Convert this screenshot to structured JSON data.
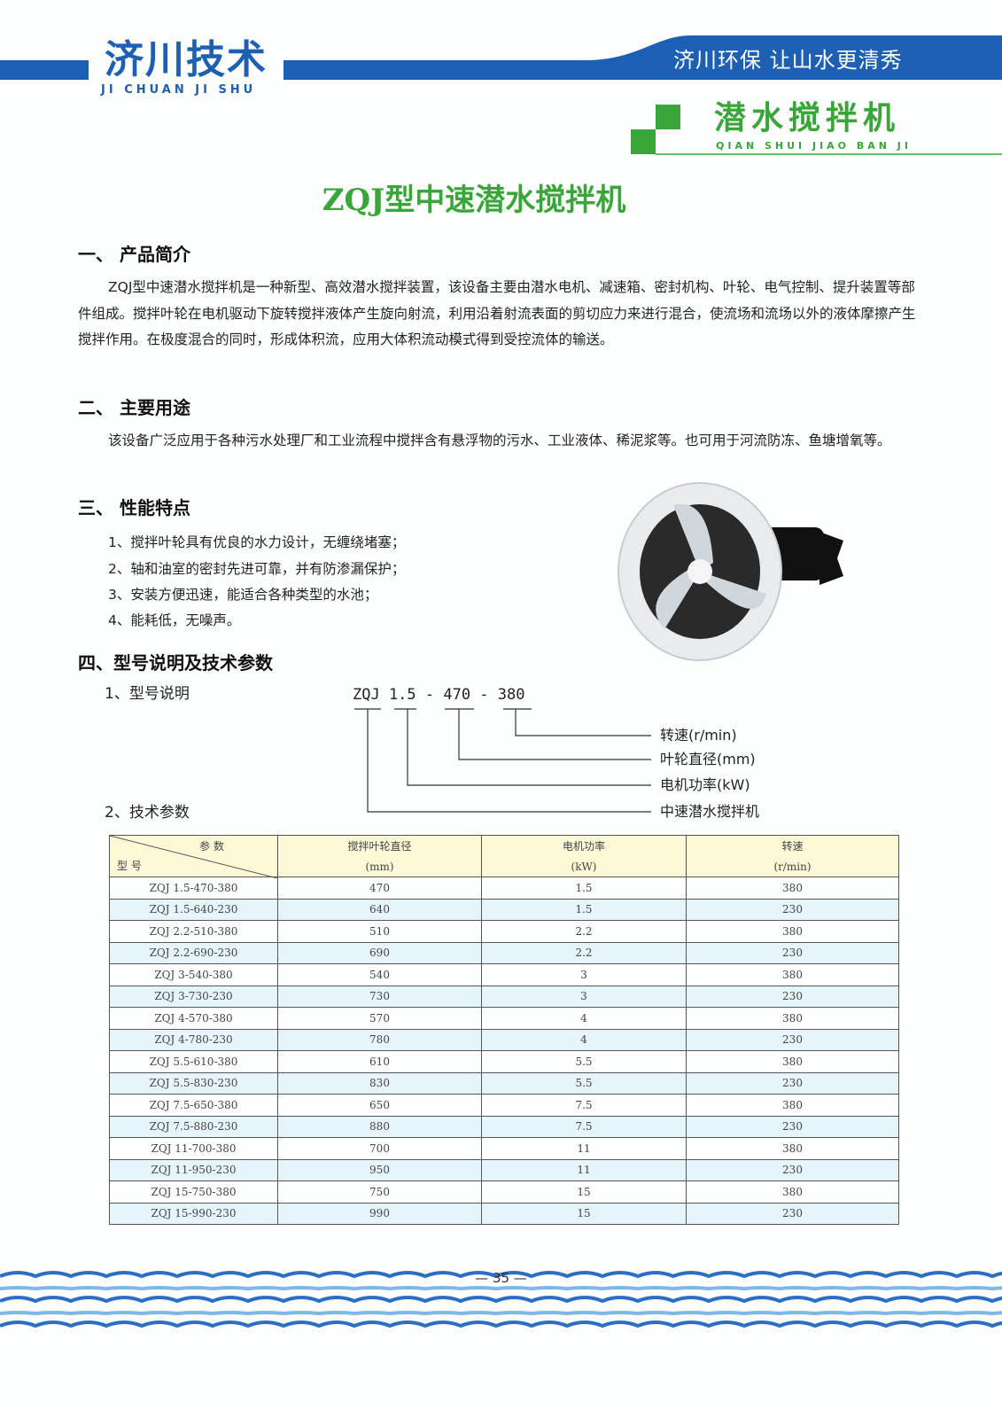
{
  "header": {
    "logo": "济川技术",
    "logo_sub": "JI CHUAN JI SHU",
    "slogan": "济川环保  让山水更清秀",
    "product": "潜水搅拌机",
    "product_sub": "QIAN SHUI JIAO BAN JI",
    "brand_blue": "#1d5fb3",
    "brand_green": "#3aa63a"
  },
  "title": "ZQJ型中速潜水搅拌机",
  "sections": {
    "s1": {
      "heading": "一、 产品简介",
      "text": "ZQJ型中速潜水搅拌机是一种新型、高效潜水搅拌装置，该设备主要由潜水电机、减速箱、密封机构、叶轮、电气控制、提升装置等部件组成。搅拌叶轮在电机驱动下旋转搅拌液体产生旋向射流，利用沿着射流表面的剪切应力来进行混合，使流场和流场以外的液体摩擦产生搅拌作用。在极度混合的同时，形成体积流，应用大体积流动模式得到受控流体的输送。"
    },
    "s2": {
      "heading": "二、 主要用途",
      "text": "该设备广泛应用于各种污水处理厂和工业流程中搅拌含有悬浮物的污水、工业液体、稀泥浆等。也可用于河流防冻、鱼塘增氧等。"
    },
    "s3": {
      "heading": "三、 性能特点",
      "items": [
        "1、搅拌叶轮具有优良的水力设计，无缠绕堵塞；",
        "2、轴和油室的密封先进可靠，并有防渗漏保护；",
        "3、安装方便迅速，能适合各种类型的水池；",
        "4、能耗低，无噪声。"
      ]
    },
    "s4": {
      "heading": "四、型号说明及技术参数",
      "sub1": "1、型号说明",
      "sub2": "2、技术参数"
    }
  },
  "model_diagram": {
    "code": "ZQJ 1.5 - 470 - 380",
    "labels": [
      "转速(r/min)",
      "叶轮直径(mm)",
      "电机功率(kW)",
      "中速潜水搅拌机"
    ]
  },
  "table": {
    "corner_top": "参 数",
    "corner_bottom": "型 号",
    "headers": [
      [
        "搅拌叶轮直径",
        "(mm)"
      ],
      [
        "电机功率",
        "(kW)"
      ],
      [
        "转速",
        "(r/min)"
      ]
    ],
    "rows": [
      [
        "ZQJ 1.5-470-380",
        "470",
        "1.5",
        "380"
      ],
      [
        "ZQJ 1.5-640-230",
        "640",
        "1.5",
        "230"
      ],
      [
        "ZQJ 2.2-510-380",
        "510",
        "2.2",
        "380"
      ],
      [
        "ZQJ 2.2-690-230",
        "690",
        "2.2",
        "230"
      ],
      [
        "ZQJ 3-540-380",
        "540",
        "3",
        "380"
      ],
      [
        "ZQJ 3-730-230",
        "730",
        "3",
        "230"
      ],
      [
        "ZQJ 4-570-380",
        "570",
        "4",
        "380"
      ],
      [
        "ZQJ 4-780-230",
        "780",
        "4",
        "230"
      ],
      [
        "ZQJ 5.5-610-380",
        "610",
        "5.5",
        "380"
      ],
      [
        "ZQJ 5.5-830-230",
        "830",
        "5.5",
        "230"
      ],
      [
        "ZQJ 7.5-650-380",
        "650",
        "7.5",
        "380"
      ],
      [
        "ZQJ 7.5-880-230",
        "880",
        "7.5",
        "230"
      ],
      [
        "ZQJ 11-700-380",
        "700",
        "11",
        "380"
      ],
      [
        "ZQJ 11-950-230",
        "950",
        "11",
        "230"
      ],
      [
        "ZQJ 15-750-380",
        "750",
        "15",
        "380"
      ],
      [
        "ZQJ 15-990-230",
        "990",
        "15",
        "230"
      ]
    ]
  },
  "page_number": "— 35 —"
}
